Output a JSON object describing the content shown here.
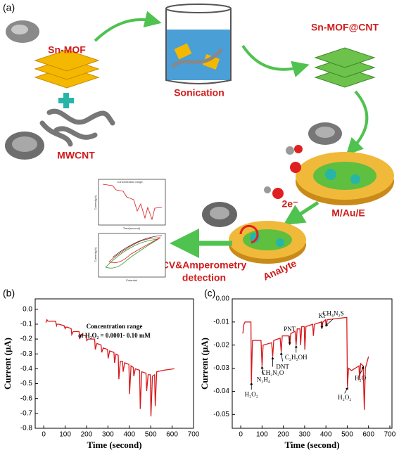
{
  "diagram": {
    "label": "(a)",
    "sn_mof": "Sn-MOF",
    "mwcnt": "MWCNT",
    "sonication": "Sonication",
    "sn_mof_cnt": "Sn-MOF@CNT",
    "electrode": "M/Au/E",
    "electrons": "2e⁻",
    "analyte": "Analyte",
    "detection": [
      "CV&Amperometry",
      "detection"
    ],
    "inset_amperometry": {
      "title": "Concentration range:",
      "y_label": "Current(μA)",
      "x_label": "Time(second)"
    },
    "inset_cv": {
      "y_label": "Current(μA)",
      "x_label": "Potential"
    }
  },
  "chart_data": [
    {
      "type": "line",
      "panel_label": "(b)",
      "x_label": "Time (second)",
      "y_label": "Current (μA)",
      "annotation": [
        "Concentration range",
        "of H₂O₂ = 0.0001- 0.10 mM"
      ],
      "color": "#d7191c",
      "xlim": [
        -40,
        700
      ],
      "xticks": [
        0,
        100,
        200,
        300,
        400,
        500,
        600,
        700
      ],
      "ylim": [
        -0.8,
        0.07
      ],
      "yticks": [
        {
          "value": 0,
          "label": "0.0"
        },
        -0.1,
        -0.2,
        -0.3,
        -0.4,
        -0.5,
        -0.6,
        -0.7,
        -0.8
      ],
      "x": [
        10,
        15,
        20,
        35,
        55,
        60,
        62,
        70,
        95,
        100,
        103,
        110,
        128,
        131,
        138,
        165,
        168,
        175,
        198,
        201,
        208,
        238,
        241,
        248,
        268,
        271,
        278,
        298,
        301,
        308,
        328,
        331,
        338,
        348,
        351,
        358,
        368,
        371,
        378,
        398,
        401,
        408,
        418,
        421,
        428,
        448,
        451,
        458,
        478,
        481,
        488,
        498,
        501,
        508,
        518,
        521,
        528,
        560,
        610
      ],
      "values": [
        -0.09,
        -0.07,
        -0.08,
        -0.08,
        -0.08,
        -0.11,
        -0.1,
        -0.1,
        -0.11,
        -0.13,
        -0.12,
        -0.12,
        -0.13,
        -0.17,
        -0.15,
        -0.15,
        -0.2,
        -0.17,
        -0.18,
        -0.21,
        -0.2,
        -0.2,
        -0.27,
        -0.23,
        -0.24,
        -0.29,
        -0.26,
        -0.27,
        -0.33,
        -0.28,
        -0.29,
        -0.36,
        -0.3,
        -0.31,
        -0.47,
        -0.35,
        -0.35,
        -0.42,
        -0.36,
        -0.37,
        -0.57,
        -0.38,
        -0.39,
        -0.45,
        -0.4,
        -0.41,
        -0.67,
        -0.42,
        -0.43,
        -0.55,
        -0.44,
        -0.44,
        -0.72,
        -0.45,
        -0.44,
        -0.65,
        -0.42,
        -0.41,
        -0.4
      ]
    },
    {
      "type": "line",
      "panel_label": "(c)",
      "x_label": "Time (second)",
      "y_label": "Current (μA)",
      "color": "#d7191c",
      "xlim": [
        -40,
        710
      ],
      "xticks": [
        0,
        100,
        200,
        300,
        400,
        500,
        600,
        700
      ],
      "ylim": [
        -0.056,
        0
      ],
      "yticks": [
        {
          "value": 0,
          "label": "0.00"
        },
        -0.01,
        -0.02,
        -0.03,
        -0.04,
        -0.05
      ],
      "x": [
        10,
        15,
        20,
        40,
        48,
        50,
        55,
        95,
        100,
        105,
        145,
        150,
        155,
        185,
        190,
        195,
        225,
        230,
        235,
        255,
        260,
        265,
        278,
        281,
        286,
        298,
        301,
        306,
        338,
        341,
        346,
        378,
        381,
        386,
        398,
        401,
        406,
        498,
        501,
        506,
        520,
        555,
        558,
        563,
        575,
        580,
        585,
        600
      ],
      "values": [
        -0.015,
        -0.011,
        -0.01,
        -0.01,
        -0.01,
        -0.036,
        -0.018,
        -0.018,
        -0.029,
        -0.02,
        -0.019,
        -0.025,
        -0.018,
        -0.017,
        -0.023,
        -0.016,
        -0.016,
        -0.02,
        -0.015,
        -0.014,
        -0.02,
        -0.013,
        -0.013,
        -0.02,
        -0.012,
        -0.012,
        -0.022,
        -0.012,
        -0.011,
        -0.016,
        -0.011,
        -0.01,
        -0.013,
        -0.01,
        -0.009,
        -0.012,
        -0.009,
        -0.008,
        -0.038,
        -0.03,
        -0.031,
        -0.029,
        -0.035,
        -0.028,
        -0.029,
        -0.048,
        -0.03,
        -0.025
      ],
      "annotations": [
        "H₂O₂",
        "N₂H₄",
        "CH₂N₂O",
        "DNT",
        "PNT",
        "C₂H₅OH",
        "KI",
        "CH₄N₂S",
        "H₂O₂",
        "H₂O"
      ]
    }
  ]
}
